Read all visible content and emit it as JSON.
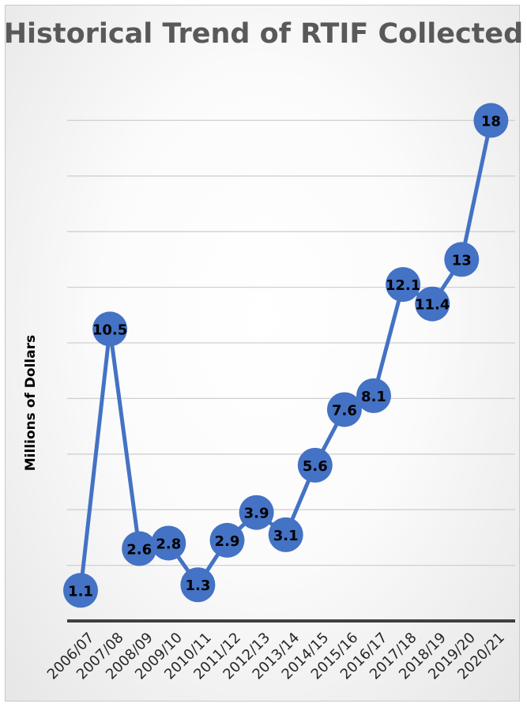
{
  "chart_data": {
    "type": "line",
    "title": "Historical Trend of RTIF Collected",
    "ylabel": "Millions of Dollars",
    "xlabel": "",
    "categories": [
      "2006/07",
      "2007/08",
      "2008/09",
      "2009/10",
      "2010/11",
      "2011/12",
      "2012/13",
      "2013/14",
      "2014/15",
      "2015/16",
      "2016/17",
      "2017/18",
      "2018/19",
      "2019/20",
      "2020/21"
    ],
    "series": [
      {
        "values": [
          1.1,
          10.5,
          2.6,
          2.8,
          1.3,
          2.9,
          3.9,
          3.1,
          5.6,
          7.6,
          8.1,
          12.1,
          11.4,
          13,
          18
        ]
      }
    ],
    "ylim": [
      0,
      20
    ],
    "y_gridlines": true,
    "y_ticks_visible": false,
    "legend": "none",
    "line_color": "#4472c4",
    "marker_color": "#4472c4"
  }
}
